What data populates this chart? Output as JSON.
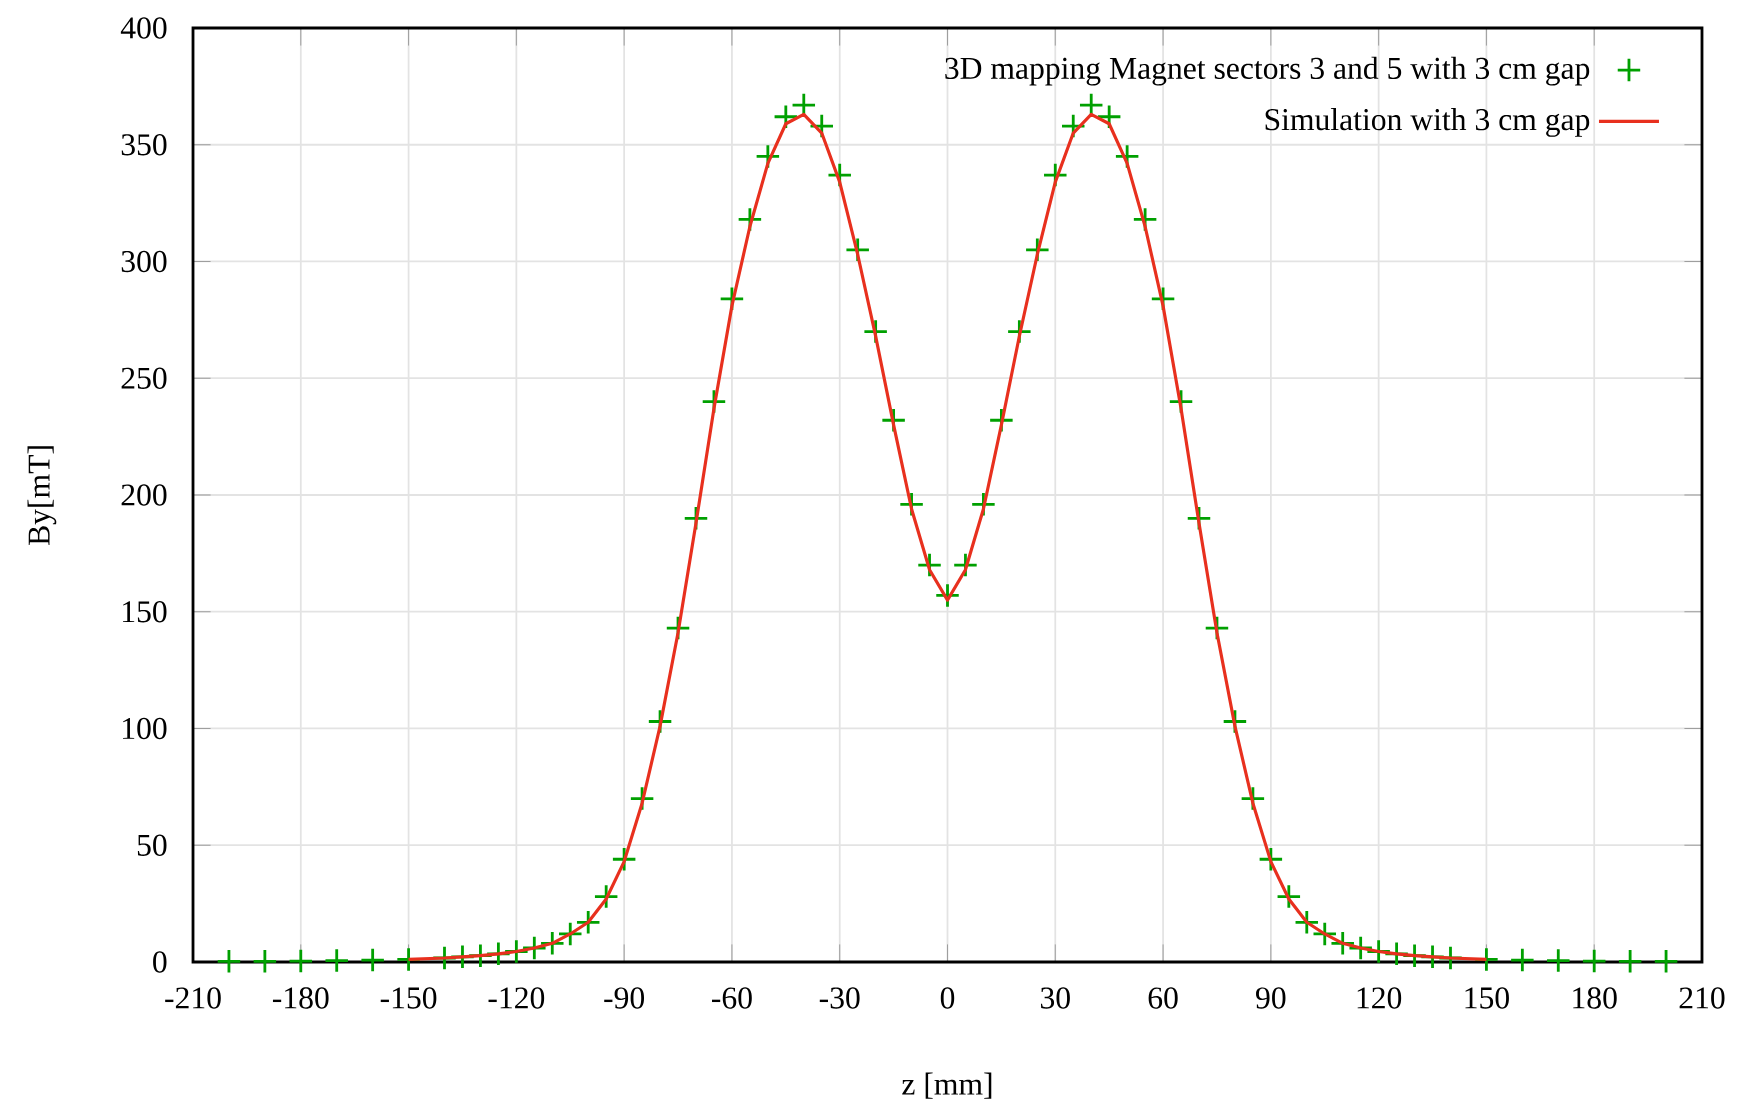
{
  "chart_data": {
    "type": "scatter",
    "xlabel": "z [mm]",
    "ylabel": "By[mT]",
    "xlim": [
      -210,
      210
    ],
    "xticks": [
      -210,
      -180,
      -150,
      -120,
      -90,
      -60,
      -30,
      0,
      30,
      60,
      90,
      120,
      150,
      180,
      210
    ],
    "ylim": [
      0,
      400
    ],
    "yticks": [
      0,
      50,
      100,
      150,
      200,
      250,
      300,
      350,
      400
    ],
    "grid": true,
    "legend": "top right",
    "series": [
      {
        "name": "3D mapping Magnet sectors 3 and 5 with 3 cm gap",
        "marker": "cross",
        "color": "#00a000",
        "x": [
          -200,
          -190,
          -180,
          -170,
          -160,
          -150,
          -140,
          -135,
          -130,
          -125,
          -120,
          -115,
          -110,
          -105,
          -100,
          -95,
          -90,
          -85,
          -80,
          -75,
          -70,
          -65,
          -60,
          -55,
          -50,
          -45,
          -40,
          -35,
          -30,
          -25,
          -20,
          -15,
          -10,
          -5,
          0,
          5,
          10,
          15,
          20,
          25,
          30,
          35,
          40,
          45,
          50,
          55,
          60,
          65,
          70,
          75,
          80,
          85,
          90,
          95,
          100,
          105,
          110,
          115,
          120,
          125,
          130,
          135,
          140,
          150,
          160,
          170,
          180,
          190,
          200
        ],
        "values": [
          0.3,
          0.3,
          0.4,
          0.6,
          0.8,
          1.1,
          1.7,
          2.2,
          2.7,
          3.5,
          4.5,
          6,
          8,
          12,
          17,
          28,
          44,
          70,
          103,
          143,
          190,
          240,
          284,
          318,
          345,
          362,
          367,
          358,
          337,
          305,
          270,
          232,
          196,
          170,
          157,
          170,
          196,
          232,
          270,
          305,
          337,
          358,
          367,
          362,
          345,
          318,
          284,
          240,
          190,
          143,
          103,
          70,
          44,
          28,
          17,
          12,
          8,
          6,
          4.5,
          3.5,
          2.7,
          2.2,
          1.7,
          1.1,
          0.8,
          0.6,
          0.4,
          0.3,
          0.3
        ]
      },
      {
        "name": "Simulation  with 3 cm gap",
        "type": "line",
        "color": "#e8301e",
        "x": [
          -150,
          -140,
          -135,
          -130,
          -125,
          -120,
          -115,
          -110,
          -105,
          -100,
          -95,
          -90,
          -85,
          -80,
          -75,
          -70,
          -65,
          -60,
          -55,
          -50,
          -45,
          -40,
          -35,
          -30,
          -25,
          -20,
          -15,
          -10,
          -5,
          0,
          5,
          10,
          15,
          20,
          25,
          30,
          35,
          40,
          45,
          50,
          55,
          60,
          65,
          70,
          75,
          80,
          85,
          90,
          95,
          100,
          105,
          110,
          115,
          120,
          125,
          130,
          135,
          140,
          150
        ],
        "values": [
          1.1,
          1.7,
          2.2,
          2.7,
          3.5,
          4.5,
          6,
          8,
          12,
          17,
          27,
          43,
          68,
          101,
          141,
          188,
          237,
          281,
          315,
          342,
          359,
          363,
          355,
          334,
          303,
          268,
          230,
          194,
          168,
          155,
          168,
          194,
          230,
          268,
          303,
          334,
          355,
          363,
          359,
          342,
          315,
          281,
          237,
          188,
          141,
          101,
          68,
          43,
          27,
          17,
          12,
          8,
          6,
          4.5,
          3.5,
          2.7,
          2.2,
          1.7,
          1.1
        ]
      }
    ]
  }
}
